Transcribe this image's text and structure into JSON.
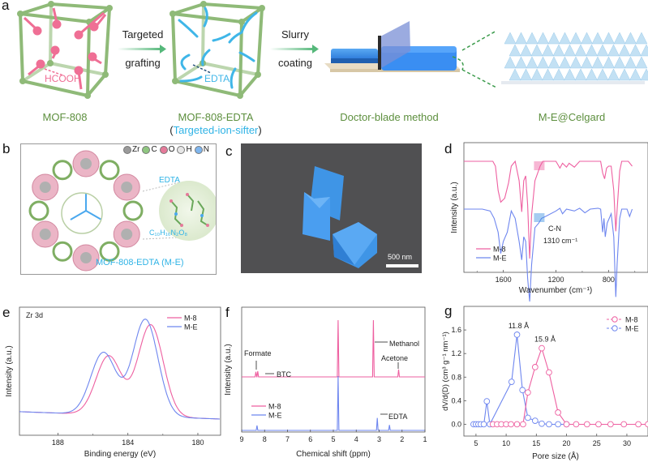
{
  "panel_a": {
    "label": "a",
    "step1_top": "Targeted",
    "step1_bottom": "grafting",
    "step2_top": "Slurry",
    "step2_bottom": "coating",
    "mof_inner_label": "HCOOH",
    "edta_inner_label": "EDTA",
    "caption_1": "MOF-808",
    "caption_2_main": "MOF-808-EDTA",
    "caption_2_sub_open": "(",
    "caption_2_sub": "Targeted-ion-sifter",
    "caption_2_sub_close": ")",
    "caption_3": "Doctor-blade method",
    "caption_4": "M-E@Celgard",
    "colors": {
      "framework": "#8fba78",
      "formate": "#ef6f95",
      "edta": "#3fb6e8",
      "arrow": "#55b87a",
      "caption": "#5d8f3e"
    }
  },
  "panel_b": {
    "label": "b",
    "legend": [
      {
        "symbol": "Zr",
        "color": "#9a9a9a"
      },
      {
        "symbol": "C",
        "color": "#8fc680"
      },
      {
        "symbol": "O",
        "color": "#e57a9a"
      },
      {
        "symbol": "H",
        "color": "#e6e6e6"
      },
      {
        "symbol": "N",
        "color": "#7fb6ee"
      }
    ],
    "inset_title": "EDTA",
    "inset_formula": "C₁₀H₁₆N₂O₈",
    "caption": "MOF-808-EDTA (M-E)"
  },
  "panel_c": {
    "label": "c",
    "scale_bar": "500 nm"
  },
  "chart_data": [
    {
      "panel": "d",
      "type": "line",
      "title": "",
      "xlabel": "Wavenumber (cm⁻¹)",
      "ylabel": "Intensity (a.u.)",
      "xlim": [
        1900,
        500
      ],
      "x_reversed": true,
      "xticks": [
        1600,
        1200,
        800
      ],
      "xtick_labels": [
        "1600",
        "1200",
        "800"
      ],
      "legend": [
        {
          "name": "M-8",
          "color": "#ee5fa0"
        },
        {
          "name": "M-E",
          "color": "#6e86ef"
        }
      ],
      "legend_position": "bottom-left",
      "annotation": {
        "line1": "C-N",
        "line2": "1310 cm⁻¹",
        "x": 1310
      },
      "series": [
        {
          "name": "M-8",
          "color": "#ee5fa0",
          "offset": 1.0,
          "points": [
            [
              1900,
              0
            ],
            [
              1680,
              0
            ],
            [
              1660,
              -0.05
            ],
            [
              1640,
              -0.3
            ],
            [
              1620,
              -0.42
            ],
            [
              1590,
              -0.38
            ],
            [
              1560,
              -0.22
            ],
            [
              1540,
              -0.05
            ],
            [
              1510,
              0
            ],
            [
              1480,
              -0.2
            ],
            [
              1460,
              -0.52
            ],
            [
              1445,
              -0.2
            ],
            [
              1430,
              -0.15
            ],
            [
              1415,
              -0.45
            ],
            [
              1400,
              -1.0
            ],
            [
              1385,
              -0.55
            ],
            [
              1360,
              -0.2
            ],
            [
              1320,
              -0.05
            ],
            [
              1300,
              0
            ],
            [
              1200,
              0
            ],
            [
              1170,
              -0.07
            ],
            [
              1150,
              -0.02
            ],
            [
              1120,
              -0.06
            ],
            [
              1100,
              -0.02
            ],
            [
              1060,
              -0.06
            ],
            [
              1020,
              0
            ],
            [
              860,
              0
            ],
            [
              845,
              -0.12
            ],
            [
              830,
              -0.18
            ],
            [
              815,
              -0.07
            ],
            [
              800,
              -0.05
            ],
            [
              780,
              -0.05
            ],
            [
              760,
              -0.3
            ],
            [
              745,
              -0.72
            ],
            [
              735,
              -0.5
            ],
            [
              715,
              -0.1
            ],
            [
              700,
              0
            ],
            [
              650,
              0
            ],
            [
              620,
              -0.05
            ]
          ]
        },
        {
          "name": "M-E",
          "color": "#6e86ef",
          "offset": 0.0,
          "points": [
            [
              1900,
              0
            ],
            [
              1760,
              0
            ],
            [
              1700,
              -0.02
            ],
            [
              1670,
              -0.1
            ],
            [
              1640,
              -0.25
            ],
            [
              1620,
              -0.48
            ],
            [
              1600,
              -0.35
            ],
            [
              1570,
              -0.25
            ],
            [
              1540,
              -0.02
            ],
            [
              1510,
              -0.1
            ],
            [
              1480,
              -0.35
            ],
            [
              1460,
              -0.55
            ],
            [
              1445,
              -0.3
            ],
            [
              1430,
              -0.35
            ],
            [
              1415,
              -0.75
            ],
            [
              1400,
              -1.0
            ],
            [
              1385,
              -0.6
            ],
            [
              1360,
              -0.2
            ],
            [
              1330,
              -0.15
            ],
            [
              1310,
              -0.1
            ],
            [
              1280,
              -0.08
            ],
            [
              1200,
              -0.02
            ],
            [
              1170,
              0.02
            ],
            [
              1150,
              -0.05
            ],
            [
              1120,
              0
            ],
            [
              1060,
              -0.02
            ],
            [
              1020,
              0.02
            ],
            [
              980,
              -0.04
            ],
            [
              940,
              0
            ],
            [
              880,
              0.02
            ],
            [
              860,
              0
            ],
            [
              845,
              -0.25
            ],
            [
              835,
              -0.1
            ],
            [
              825,
              -0.3
            ],
            [
              810,
              -0.15
            ],
            [
              795,
              -0.1
            ],
            [
              780,
              -0.05
            ],
            [
              760,
              -0.3
            ],
            [
              745,
              -0.95
            ],
            [
              735,
              -0.6
            ],
            [
              715,
              -0.1
            ],
            [
              700,
              0
            ],
            [
              660,
              0
            ],
            [
              640,
              -0.08
            ],
            [
              620,
              0
            ]
          ]
        }
      ]
    },
    {
      "panel": "e",
      "type": "line",
      "title": "Zr 3d",
      "xlabel": "Binding energy (eV)",
      "ylabel": "Intensity (a.u.)",
      "xlim": [
        190.2,
        178.7
      ],
      "x_reversed": true,
      "xticks": [
        188,
        184,
        180
      ],
      "xtick_labels": [
        "188",
        "184",
        "180"
      ],
      "legend": [
        {
          "name": "M-8",
          "color": "#ee5fa0"
        },
        {
          "name": "M-E",
          "color": "#6e86ef"
        }
      ],
      "legend_position": "top-right",
      "series": [
        {
          "name": "M-8",
          "color": "#ee5fa0",
          "peaks": [
            {
              "center": 185.1,
              "height": 0.56,
              "width": 0.72
            },
            {
              "center": 182.7,
              "height": 0.87,
              "width": 0.72
            }
          ],
          "baseline": [
            0.07,
            0.0
          ]
        },
        {
          "name": "M-E",
          "color": "#6e86ef",
          "peaks": [
            {
              "center": 185.4,
              "height": 0.59,
              "width": 0.72
            },
            {
              "center": 183.0,
              "height": 0.92,
              "width": 0.72
            }
          ],
          "baseline": [
            0.07,
            0.0
          ]
        }
      ]
    },
    {
      "panel": "f",
      "type": "line",
      "title": "",
      "xlabel": "Chemical shift (ppm)",
      "ylabel": "Intensity (a.u.)",
      "xlim": [
        9,
        1
      ],
      "x_reversed": true,
      "xticks": [
        9,
        8,
        7,
        6,
        5,
        4,
        3,
        2,
        1
      ],
      "xtick_labels": [
        "9",
        "8",
        "7",
        "6",
        "5",
        "4",
        "3",
        "2",
        "1"
      ],
      "legend": [
        {
          "name": "M-8",
          "color": "#ee5fa0"
        },
        {
          "name": "M-E",
          "color": "#6e86ef"
        }
      ],
      "legend_position": "center-left",
      "annotations": [
        "Formate",
        "BTC",
        "Methanol",
        "Acetone",
        "EDTA"
      ],
      "series": [
        {
          "name": "M-8",
          "color": "#ee5fa0",
          "offset": 1.0,
          "peaks": [
            {
              "ppm": 8.38,
              "height": 0.09
            },
            {
              "ppm": 8.3,
              "height": 0.1
            },
            {
              "ppm": 4.79,
              "height": 1.0
            },
            {
              "ppm": 3.25,
              "height": 1.0
            },
            {
              "ppm": 2.15,
              "height": 0.13
            }
          ]
        },
        {
          "name": "M-E",
          "color": "#6e86ef",
          "offset": 0.0,
          "peaks": [
            {
              "ppm": 8.33,
              "height": 0.09
            },
            {
              "ppm": 4.79,
              "height": 1.0
            },
            {
              "ppm": 3.08,
              "height": 0.23
            },
            {
              "ppm": 2.55,
              "height": 0.1
            }
          ]
        }
      ]
    },
    {
      "panel": "g",
      "type": "scatter",
      "title": "",
      "xlabel": "Pore size (Å)",
      "ylabel": "dV/d(D) (cm³ g⁻¹ nm⁻¹)",
      "xlim": [
        3.0,
        33.5
      ],
      "ylim": [
        -0.2,
        2.0
      ],
      "xticks": [
        5,
        10,
        15,
        20,
        25,
        30
      ],
      "yticks": [
        0.0,
        0.4,
        0.8,
        1.2,
        1.6
      ],
      "ytick_labels": [
        "0.0",
        "0.4",
        "0.8",
        "1.2",
        "1.6"
      ],
      "legend": [
        {
          "name": "M-8",
          "color": "#ee5fa0"
        },
        {
          "name": "M-E",
          "color": "#6e86ef"
        }
      ],
      "legend_position": "top-right",
      "annotations": [
        {
          "text": "11.8 Å",
          "x": 11.8,
          "y": 1.52
        },
        {
          "text": "15.9 Å",
          "x": 15.9,
          "y": 1.29
        }
      ],
      "series": [
        {
          "name": "M-8",
          "color": "#ee5fa0",
          "x": [
            7.8,
            8.5,
            9.2,
            10.0,
            10.8,
            11.8,
            12.8,
            13.6,
            14.8,
            15.9,
            17.1,
            18.6,
            20.0,
            21.6,
            23.4,
            25.3,
            27.3,
            29.5,
            31.9,
            33.5
          ],
          "y": [
            0.0,
            0.0,
            0.0,
            0.0,
            0.0,
            0.0,
            0.0,
            0.54,
            0.97,
            1.29,
            0.88,
            0.2,
            0.0,
            0.0,
            0.0,
            0.0,
            0.0,
            0.0,
            0.0,
            0.0
          ]
        },
        {
          "name": "M-E",
          "color": "#6e86ef",
          "x": [
            4.6,
            5.0,
            5.4,
            5.8,
            6.3,
            6.8,
            7.3,
            10.9,
            11.8,
            12.7,
            13.6,
            14.8,
            15.9,
            17.1,
            18.6,
            20.0
          ],
          "y": [
            0.0,
            0.0,
            0.0,
            0.0,
            0.0,
            0.39,
            0.0,
            0.72,
            1.52,
            0.58,
            0.11,
            0.06,
            0.01,
            0.0,
            0.0,
            0.0
          ]
        }
      ]
    }
  ],
  "panel_labels": {
    "d": "d",
    "e": "e",
    "f": "f",
    "g": "g"
  }
}
